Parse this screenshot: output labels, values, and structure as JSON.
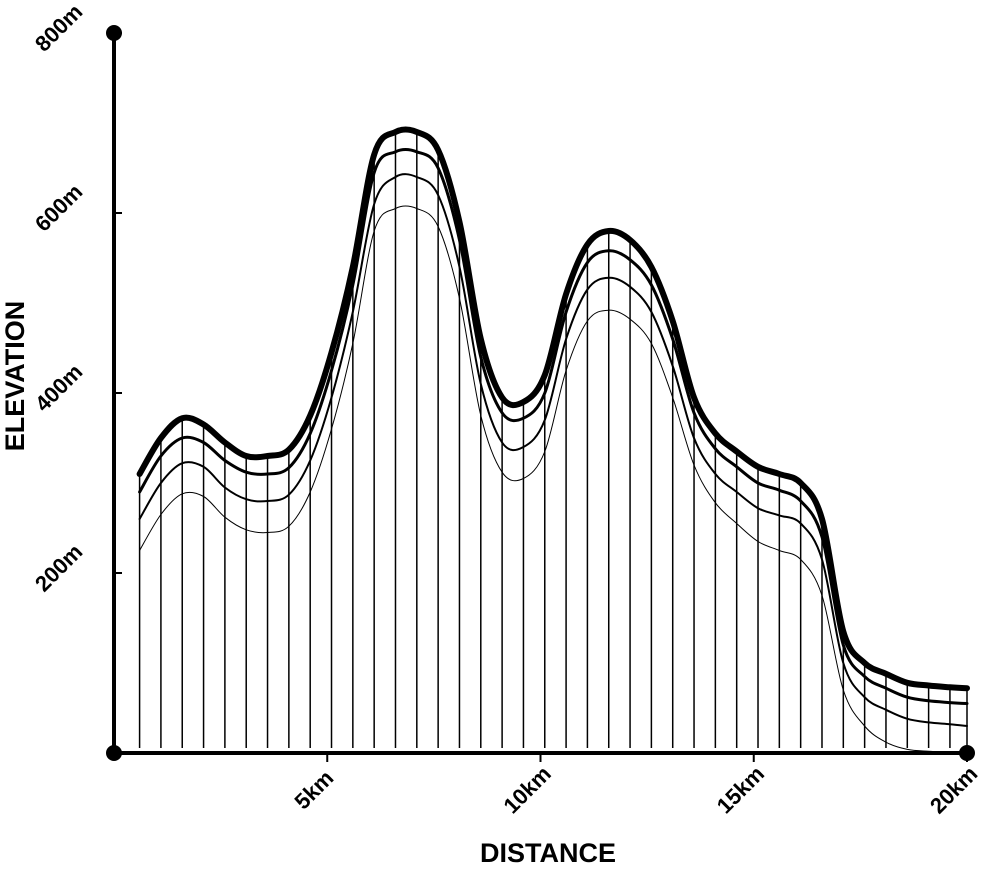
{
  "chart_data": {
    "type": "area",
    "title": "",
    "xlabel": "DISTANCE",
    "ylabel": "ELEVATION",
    "xlim": [
      0,
      20
    ],
    "ylim": [
      0,
      800
    ],
    "x_ticks": [
      {
        "value": 5,
        "label": "5km"
      },
      {
        "value": 10,
        "label": "10km"
      },
      {
        "value": 15,
        "label": "15km"
      },
      {
        "value": 20,
        "label": "20km"
      }
    ],
    "y_ticks": [
      {
        "value": 200,
        "label": "200m"
      },
      {
        "value": 400,
        "label": "400m"
      },
      {
        "value": 600,
        "label": "600m"
      },
      {
        "value": 800,
        "label": "800m"
      }
    ],
    "grid": false,
    "style": "monochrome line art with vertical hatching",
    "color": "#000000",
    "x": [
      0.6,
      1.1,
      1.6,
      2.1,
      2.6,
      3.1,
      3.6,
      4.1,
      4.6,
      5.1,
      5.6,
      6.1,
      6.6,
      7.1,
      7.6,
      8.1,
      8.6,
      9.1,
      9.6,
      10.1,
      10.6,
      11.1,
      11.6,
      12.1,
      12.6,
      13.1,
      13.6,
      14.1,
      14.6,
      15.1,
      15.6,
      16.1,
      16.6,
      17.1,
      17.6,
      18.1,
      18.6,
      19.1,
      19.6,
      20.0
    ],
    "series": [
      {
        "values": [
          310,
          350,
          372,
          365,
          345,
          330,
          330,
          337,
          375,
          445,
          540,
          665,
          690,
          690,
          670,
          590,
          460,
          395,
          390,
          420,
          510,
          565,
          580,
          570,
          540,
          480,
          395,
          355,
          335,
          318,
          310,
          300,
          260,
          135,
          100,
          88,
          78,
          75,
          73,
          72
        ]
      },
      {
        "values": [
          290,
          330,
          350,
          345,
          325,
          312,
          310,
          317,
          355,
          425,
          520,
          645,
          668,
          668,
          650,
          570,
          440,
          378,
          372,
          400,
          490,
          545,
          558,
          548,
          520,
          460,
          378,
          338,
          318,
          300,
          292,
          280,
          240,
          120,
          85,
          72,
          62,
          58,
          56,
          55
        ]
      },
      {
        "values": [
          260,
          300,
          322,
          318,
          295,
          282,
          280,
          287,
          325,
          395,
          490,
          610,
          640,
          640,
          620,
          540,
          410,
          345,
          340,
          370,
          460,
          515,
          528,
          518,
          490,
          430,
          350,
          310,
          290,
          272,
          264,
          255,
          215,
          100,
          62,
          48,
          38,
          34,
          32,
          30
        ]
      },
      {
        "values": [
          225,
          265,
          288,
          285,
          262,
          248,
          245,
          252,
          290,
          360,
          455,
          580,
          605,
          605,
          585,
          505,
          375,
          312,
          305,
          335,
          425,
          480,
          492,
          482,
          455,
          395,
          320,
          278,
          255,
          235,
          225,
          215,
          175,
          70,
          30,
          12,
          4,
          2,
          1,
          0
        ]
      }
    ]
  }
}
